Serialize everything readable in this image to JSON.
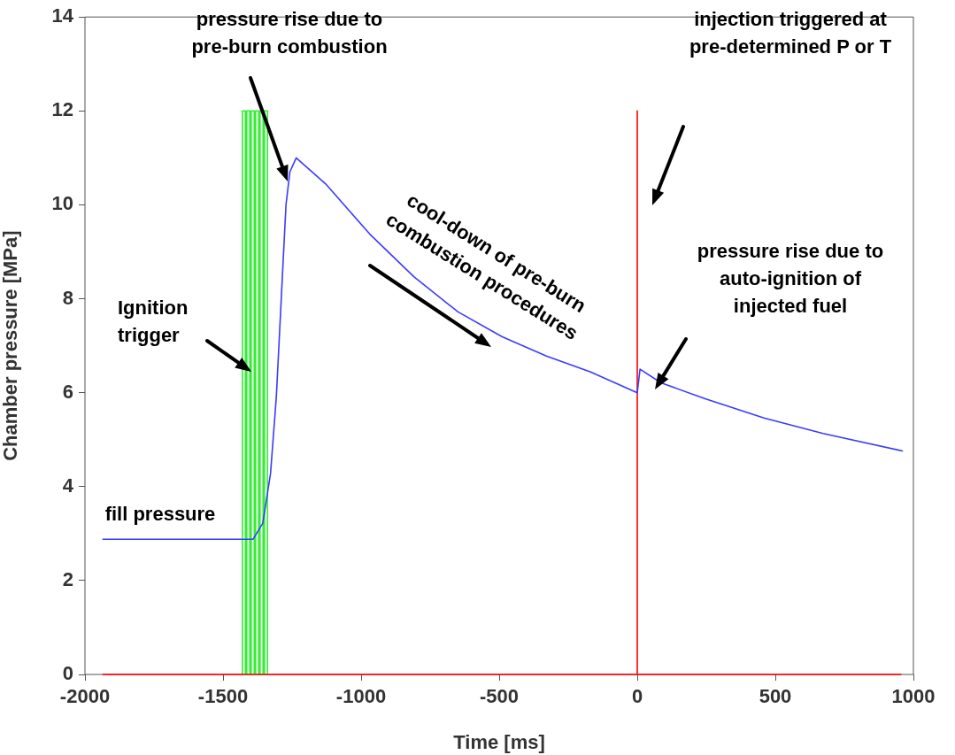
{
  "chart_data": {
    "type": "line",
    "xlabel": "Time [ms]",
    "ylabel": "Chamber pressure [MPa]",
    "xlim": [
      -2000,
      1000
    ],
    "xticks": [
      -2000,
      -1500,
      -1000,
      -500,
      0,
      500,
      1000
    ],
    "ylim": [
      0,
      14
    ],
    "yticks": [
      0,
      2,
      4,
      6,
      8,
      10,
      12,
      14
    ],
    "grid": false,
    "legend": false,
    "marker": "none",
    "line_style": "solid",
    "series": [
      {
        "color": "#33ee33",
        "x": [
          -1430,
          -1430,
          -1419,
          -1419,
          -1414,
          -1414,
          -1403,
          -1403,
          -1398,
          -1398,
          -1387,
          -1387,
          -1382,
          -1382,
          -1371,
          -1371,
          -1366,
          -1366,
          -1355,
          -1355,
          -1350,
          -1350,
          -1339,
          -1339
        ],
        "values": [
          0,
          12,
          12,
          0,
          0,
          12,
          12,
          0,
          0,
          12,
          12,
          0,
          0,
          12,
          12,
          0,
          0,
          12,
          12,
          0,
          0,
          12,
          12,
          0
        ]
      },
      {
        "color": "#ff0000",
        "x": [
          -1935,
          0,
          0,
          0,
          955
        ],
        "values": [
          0,
          0,
          12,
          0,
          0
        ]
      },
      {
        "color": "#3a3aff",
        "x": [
          -1935,
          -1391,
          -1356,
          -1328,
          -1307,
          -1286,
          -1272,
          -1258,
          -1235,
          -1129,
          -969,
          -809,
          -649,
          -489,
          -329,
          -169,
          0,
          10,
          86,
          246,
          459,
          673,
          960
        ],
        "values": [
          2.88,
          2.88,
          3.22,
          4.28,
          5.91,
          8.37,
          10.0,
          10.7,
          11.0,
          10.45,
          9.38,
          8.47,
          7.72,
          7.19,
          6.78,
          6.44,
          6.0,
          6.5,
          6.21,
          5.87,
          5.46,
          5.13,
          4.76
        ]
      }
    ],
    "annotations": [
      "fill pressure",
      "Ignition\ntrigger",
      "pressure rise due to\npre-burn combustion",
      "cool-down of pre-burn\ncombustion procedures",
      "injection triggered at\npre-determined P or T",
      "pressure rise due to\nauto-ignition of\ninjected fuel"
    ]
  }
}
